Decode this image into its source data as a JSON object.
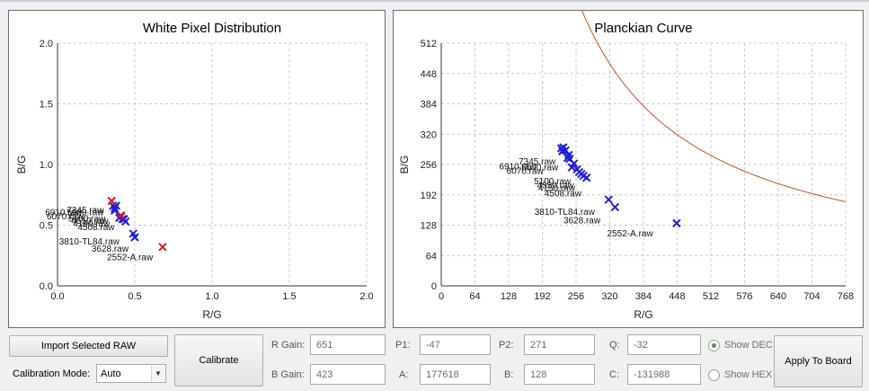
{
  "left_chart": {
    "title": "White Pixel Distribution",
    "xlabel": "R/G",
    "ylabel": "B/G",
    "xlim": [
      0,
      2.0
    ],
    "ylim": [
      0,
      2.0
    ],
    "xticks": [
      "0.0",
      "0.5",
      "1.0",
      "1.5",
      "2.0"
    ],
    "yticks": [
      "0.0",
      "0.5",
      "1.0",
      "1.5",
      "2.0"
    ],
    "blue_points": [
      [
        0.36,
        0.66
      ],
      [
        0.37,
        0.64
      ],
      [
        0.37,
        0.62
      ],
      [
        0.38,
        0.66
      ],
      [
        0.4,
        0.56
      ],
      [
        0.41,
        0.57
      ],
      [
        0.42,
        0.55
      ],
      [
        0.43,
        0.55
      ],
      [
        0.44,
        0.53
      ],
      [
        0.49,
        0.43
      ],
      [
        0.5,
        0.4
      ]
    ],
    "red_points": [
      [
        0.35,
        0.7
      ],
      [
        0.41,
        0.58
      ],
      [
        0.68,
        0.32
      ]
    ],
    "labels": [
      {
        "text": "7345.raw",
        "x": 0.06,
        "y": 0.6
      },
      {
        "text": "6910.raw",
        "x": -0.08,
        "y": 0.58
      },
      {
        "text": "5000.raw",
        "x": 0.06,
        "y": 0.58
      },
      {
        "text": "6070.raw",
        "x": -0.07,
        "y": 0.55
      },
      {
        "text": "5100.raw",
        "x": 0.07,
        "y": 0.53
      },
      {
        "text": "4550.raw",
        "x": 0.09,
        "y": 0.51
      },
      {
        "text": "4150.raw",
        "x": 0.1,
        "y": 0.49
      },
      {
        "text": "4508.raw",
        "x": 0.13,
        "y": 0.46
      },
      {
        "text": "3810-TL84.raw",
        "x": 0.01,
        "y": 0.34
      },
      {
        "text": "3628.raw",
        "x": 0.22,
        "y": 0.28
      },
      {
        "text": "2552-A.raw",
        "x": 0.32,
        "y": 0.21
      }
    ]
  },
  "right_chart": {
    "title": "Planckian Curve",
    "xlabel": "R/G",
    "ylabel": "B/G",
    "xlim": [
      0,
      768
    ],
    "ylim": [
      0,
      512
    ],
    "xticks": [
      "0",
      "64",
      "128",
      "192",
      "256",
      "320",
      "384",
      "448",
      "512",
      "576",
      "640",
      "704",
      "768"
    ],
    "yticks": [
      "0",
      "64",
      "128",
      "192",
      "256",
      "320",
      "384",
      "448",
      "512"
    ],
    "curve": {
      "P1": -47,
      "P2": 271,
      "Q": -32,
      "A": 177618,
      "B": 128,
      "C": -131988
    },
    "blue_points": [
      [
        228,
        290
      ],
      [
        230,
        284
      ],
      [
        232,
        292
      ],
      [
        236,
        286
      ],
      [
        240,
        270
      ],
      [
        242,
        276
      ],
      [
        244,
        268
      ],
      [
        248,
        250
      ],
      [
        252,
        258
      ],
      [
        258,
        246
      ],
      [
        262,
        240
      ],
      [
        266,
        236
      ],
      [
        270,
        232
      ],
      [
        276,
        228
      ],
      [
        318,
        182
      ],
      [
        330,
        166
      ],
      [
        447,
        132
      ]
    ],
    "labels": [
      {
        "text": "7345.raw",
        "x": 147,
        "y": 256
      },
      {
        "text": "6910.raw",
        "x": 110,
        "y": 246
      },
      {
        "text": "5000.raw",
        "x": 152,
        "y": 244
      },
      {
        "text": "6070.raw",
        "x": 124,
        "y": 236
      },
      {
        "text": "5100.raw",
        "x": 176,
        "y": 214
      },
      {
        "text": "4550.raw",
        "x": 182,
        "y": 206
      },
      {
        "text": "4150.raw",
        "x": 184,
        "y": 200
      },
      {
        "text": "4508.raw",
        "x": 196,
        "y": 189
      },
      {
        "text": "3810-TL84.raw",
        "x": 177,
        "y": 150
      },
      {
        "text": "3628.raw",
        "x": 232,
        "y": 132
      },
      {
        "text": "2552-A.raw",
        "x": 315,
        "y": 104
      }
    ]
  },
  "controls": {
    "import_button": "Import Selected RAW",
    "calibrate_button": "Calibrate",
    "apply_button": "Apply To Board",
    "mode_label": "Calibration Mode:",
    "mode_value": "Auto",
    "r_gain_label": "R Gain:",
    "r_gain_value": "651",
    "b_gain_label": "B Gain:",
    "b_gain_value": "423",
    "p1_label": "P1:",
    "p1_value": "-47",
    "a_label": "A:",
    "a_value": "177618",
    "p2_label": "P2:",
    "p2_value": "271",
    "b_label": "B:",
    "b_value": "128",
    "q_label": "Q:",
    "q_value": "-32",
    "c_label": "C:",
    "c_value": "-131988",
    "show_dec": "Show DEC",
    "show_hex": "Show HEX"
  },
  "colors": {
    "marker_blue": "#1f1fd6",
    "marker_red": "#d81818",
    "curve": "#c8501e",
    "grid": "#c8c8c8"
  }
}
